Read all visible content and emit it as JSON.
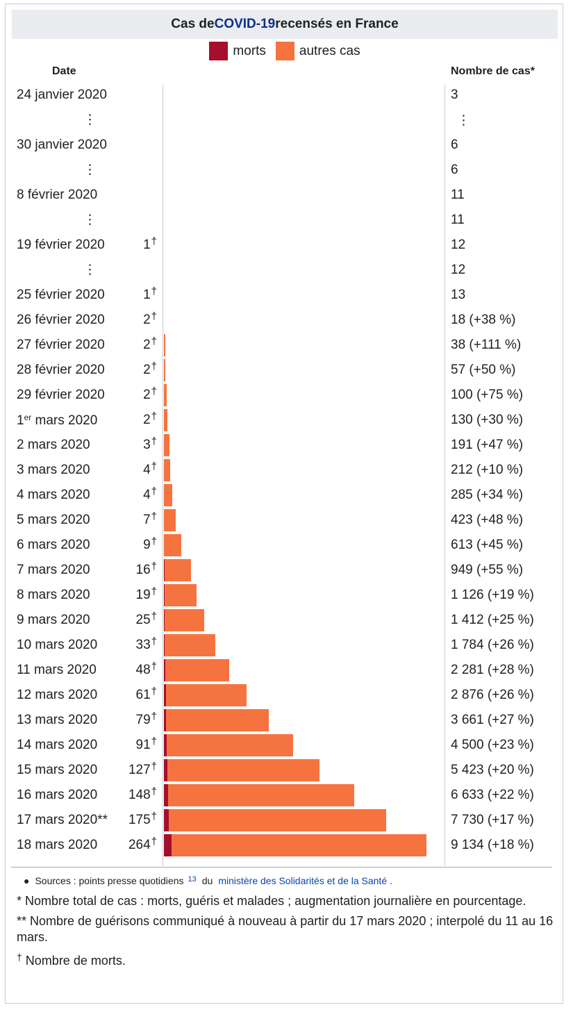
{
  "caption": {
    "prefix": "Cas de ",
    "link": "COVID-19",
    "suffix": " recensés en France"
  },
  "legend": [
    {
      "label": "morts",
      "color": "#a50f2b"
    },
    {
      "label": "autres cas",
      "color": "#f5733f"
    }
  ],
  "headers": {
    "date": "Date",
    "cases": "Nombre de cas*"
  },
  "chart_data": {
    "type": "bar",
    "orientation": "horizontal",
    "title": "Cas de COVID-19 recensés en France",
    "series": [
      {
        "name": "morts",
        "color": "#a50f2b"
      },
      {
        "name": "autres cas",
        "color": "#f5733f"
      }
    ],
    "rows": [
      {
        "date": "24 janvier 2020",
        "deaths": null,
        "cases": 3,
        "cases_text": "3",
        "ellipsis": false
      },
      {
        "date": "",
        "deaths": null,
        "cases": null,
        "cases_text": "⋮",
        "ellipsis": true
      },
      {
        "date": "30 janvier 2020",
        "deaths": null,
        "cases": 6,
        "cases_text": "6",
        "ellipsis": false
      },
      {
        "date": "",
        "deaths": null,
        "cases": 6,
        "cases_text": "6",
        "ellipsis": true
      },
      {
        "date": "8 février 2020",
        "deaths": null,
        "cases": 11,
        "cases_text": "11",
        "ellipsis": false
      },
      {
        "date": "",
        "deaths": null,
        "cases": 11,
        "cases_text": "11",
        "ellipsis": true
      },
      {
        "date": "19 février 2020",
        "deaths": 1,
        "cases": 12,
        "cases_text": "12",
        "ellipsis": false
      },
      {
        "date": "",
        "deaths": null,
        "cases": 12,
        "cases_text": "12",
        "ellipsis": true
      },
      {
        "date": "25 février 2020",
        "deaths": 1,
        "cases": 13,
        "cases_text": "13",
        "ellipsis": false
      },
      {
        "date": "26 février 2020",
        "deaths": 2,
        "cases": 18,
        "cases_text": "18 (+38 %)",
        "ellipsis": false
      },
      {
        "date": "27 février 2020",
        "deaths": 2,
        "cases": 38,
        "cases_text": "38 (+111 %)",
        "ellipsis": false
      },
      {
        "date": "28 février 2020",
        "deaths": 2,
        "cases": 57,
        "cases_text": "57 (+50 %)",
        "ellipsis": false
      },
      {
        "date": "29 février 2020",
        "deaths": 2,
        "cases": 100,
        "cases_text": "100 (+75 %)",
        "ellipsis": false
      },
      {
        "date": "1",
        "date_sup": "er",
        "date_rest": " mars 2020",
        "deaths": 2,
        "cases": 130,
        "cases_text": "130 (+30 %)",
        "ellipsis": false
      },
      {
        "date": "2 mars 2020",
        "deaths": 3,
        "cases": 191,
        "cases_text": "191 (+47 %)",
        "ellipsis": false
      },
      {
        "date": "3 mars 2020",
        "deaths": 4,
        "cases": 212,
        "cases_text": "212 (+10 %)",
        "ellipsis": false
      },
      {
        "date": "4 mars 2020",
        "deaths": 4,
        "cases": 285,
        "cases_text": "285 (+34 %)",
        "ellipsis": false
      },
      {
        "date": "5 mars 2020",
        "deaths": 7,
        "cases": 423,
        "cases_text": "423 (+48 %)",
        "ellipsis": false
      },
      {
        "date": "6 mars 2020",
        "deaths": 9,
        "cases": 613,
        "cases_text": "613 (+45 %)",
        "ellipsis": false
      },
      {
        "date": "7 mars 2020",
        "deaths": 16,
        "cases": 949,
        "cases_text": "949 (+55 %)",
        "ellipsis": false
      },
      {
        "date": "8 mars 2020",
        "deaths": 19,
        "cases": 1126,
        "cases_text": "1 126 (+19 %)",
        "ellipsis": false
      },
      {
        "date": "9 mars 2020",
        "deaths": 25,
        "cases": 1412,
        "cases_text": "1 412 (+25 %)",
        "ellipsis": false
      },
      {
        "date": "10 mars 2020",
        "deaths": 33,
        "cases": 1784,
        "cases_text": "1 784 (+26 %)",
        "ellipsis": false
      },
      {
        "date": "11 mars 2020",
        "deaths": 48,
        "cases": 2281,
        "cases_text": "2 281 (+28 %)",
        "ellipsis": false
      },
      {
        "date": "12 mars 2020",
        "deaths": 61,
        "cases": 2876,
        "cases_text": "2 876 (+26 %)",
        "ellipsis": false
      },
      {
        "date": "13 mars 2020",
        "deaths": 79,
        "cases": 3661,
        "cases_text": "3 661 (+27 %)",
        "ellipsis": false
      },
      {
        "date": "14 mars 2020",
        "deaths": 91,
        "cases": 4500,
        "cases_text": "4 500 (+23 %)",
        "ellipsis": false
      },
      {
        "date": "15 mars 2020",
        "deaths": 127,
        "cases": 5423,
        "cases_text": "5 423 (+20 %)",
        "ellipsis": false
      },
      {
        "date": "16 mars 2020",
        "deaths": 148,
        "cases": 6633,
        "cases_text": "6 633 (+22 %)",
        "ellipsis": false
      },
      {
        "date": "17 mars 2020**",
        "deaths": 175,
        "cases": 7730,
        "cases_text": "7 730 (+17 %)",
        "ellipsis": false
      },
      {
        "date": "18 mars 2020",
        "deaths": 264,
        "cases": 9134,
        "cases_text": "9 134 (+18 %)",
        "ellipsis": false
      }
    ],
    "xmax": 9134
  },
  "notes": {
    "source_prefix": "Sources : points presse quotidiens",
    "source_ref": "13",
    "source_mid": "du",
    "source_link": "ministère des Solidarités et de la Santé",
    "source_end": ".",
    "note1": "* Nombre total de cas : morts, guéris et malades ; augmentation journalière en pourcentage.",
    "note2": "** Nombre de guérisons communiqué à nouveau à partir du 17 mars 2020 ; interpolé du 11 au 16 mars.",
    "note3_mark": "†",
    "note3": " Nombre de morts."
  }
}
